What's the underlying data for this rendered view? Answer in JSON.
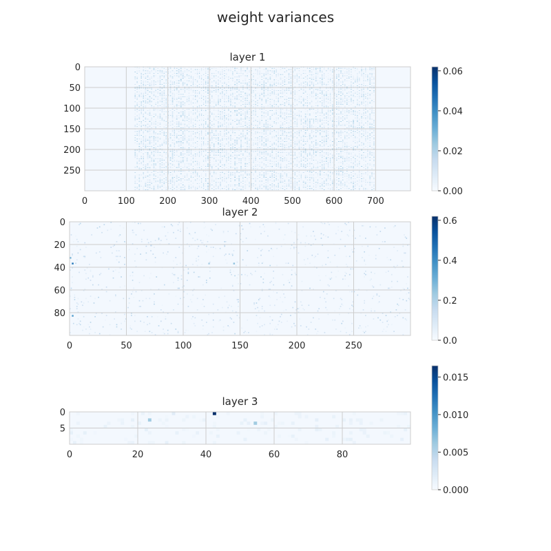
{
  "figure": {
    "suptitle": "weight variances",
    "colormap": {
      "name": "Blues",
      "light": "#f7fbff",
      "dark": "#08306b"
    },
    "grid_color": "#cccccc",
    "frame_color": "#cccccc"
  },
  "chart_data": [
    {
      "type": "heatmap",
      "title": "layer 1",
      "rows": 300,
      "cols": 784,
      "xticks": [
        0,
        100,
        200,
        300,
        400,
        500,
        600,
        700
      ],
      "yticks": [
        0,
        50,
        100,
        150,
        200,
        250
      ],
      "colorbar": {
        "min": 0.0,
        "max": 0.062,
        "ticks": [
          "0.00",
          "0.02",
          "0.04",
          "0.06"
        ],
        "tick_values": [
          0.0,
          0.02,
          0.04,
          0.06
        ]
      },
      "grid": true,
      "active_col_range": [
        120,
        700
      ],
      "highlights": []
    },
    {
      "type": "heatmap",
      "title": "layer 2",
      "rows": 100,
      "cols": 300,
      "xticks": [
        0,
        50,
        100,
        150,
        200,
        250
      ],
      "yticks": [
        0,
        20,
        40,
        60,
        80
      ],
      "colorbar": {
        "min": 0.0,
        "max": 0.62,
        "ticks": [
          "0.0",
          "0.2",
          "0.4",
          "0.6"
        ],
        "tick_values": [
          0.0,
          0.2,
          0.4,
          0.6
        ]
      },
      "grid": true,
      "highlights": [
        {
          "col": 2,
          "row": 36,
          "value": 0.45
        },
        {
          "col": 2,
          "row": 82,
          "value": 0.35
        },
        {
          "col": 0,
          "row": 31,
          "value": 0.3
        },
        {
          "col": 144,
          "row": 36,
          "value": 0.25
        },
        {
          "col": 122,
          "row": 36,
          "value": 0.2
        },
        {
          "col": 71,
          "row": 20,
          "value": 0.15
        }
      ]
    },
    {
      "type": "heatmap",
      "title": "layer 3",
      "rows": 10,
      "cols": 100,
      "xticks": [
        0,
        20,
        40,
        60,
        80
      ],
      "yticks": [
        0,
        5
      ],
      "colorbar": {
        "min": 0.0,
        "max": 0.0165,
        "ticks": [
          "0.000",
          "0.005",
          "0.010",
          "0.015"
        ],
        "tick_values": [
          0.0,
          0.005,
          0.01,
          0.015
        ]
      },
      "grid": true,
      "highlights": [
        {
          "col": 42,
          "row": 0,
          "value": 0.0165
        },
        {
          "col": 23,
          "row": 2,
          "value": 0.006
        },
        {
          "col": 54,
          "row": 3,
          "value": 0.006
        },
        {
          "col": 30,
          "row": 0,
          "value": 0.002
        },
        {
          "col": 72,
          "row": 2,
          "value": 0.0015
        },
        {
          "col": 10,
          "row": 4,
          "value": 0.0012
        },
        {
          "col": 20,
          "row": 3,
          "value": 0.0012
        },
        {
          "col": 50,
          "row": 3,
          "value": 0.0012
        },
        {
          "col": 82,
          "row": 3,
          "value": 0.001
        },
        {
          "col": 2,
          "row": 3,
          "value": 0.001
        },
        {
          "col": 26,
          "row": 2,
          "value": 0.0009
        }
      ]
    }
  ]
}
